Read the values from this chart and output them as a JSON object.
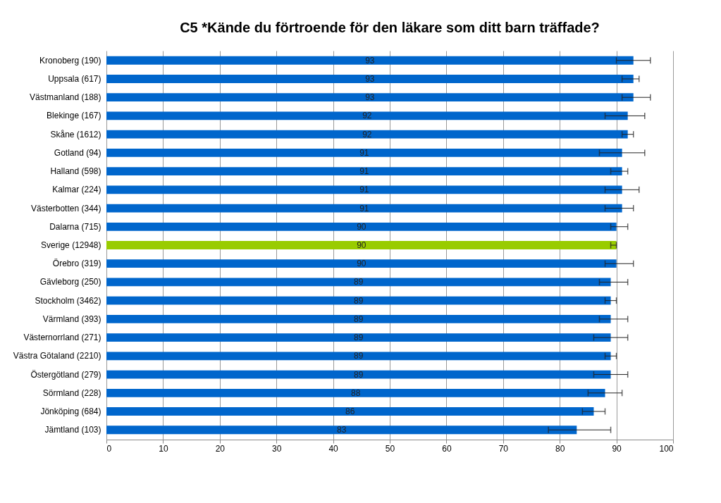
{
  "chart_data": {
    "type": "bar",
    "orientation": "horizontal",
    "title": "C5 *Kände du förtroende för den läkare som ditt barn träffade?",
    "categories": [
      "Kronoberg (190)",
      "Uppsala (617)",
      "Västmanland (188)",
      "Blekinge (167)",
      "Skåne (1612)",
      "Gotland (94)",
      "Halland (598)",
      "Kalmar (224)",
      "Västerbotten (344)",
      "Dalarna (715)",
      "Sverige (12948)",
      "Örebro (319)",
      "Gävleborg (250)",
      "Stockholm (3462)",
      "Värmland (393)",
      "Västernorrland (271)",
      "Västra Götaland (2210)",
      "Östergötland (279)",
      "Sörmland (228)",
      "Jönköping (684)",
      "Jämtland (103)"
    ],
    "values": [
      93,
      93,
      93,
      92,
      92,
      91,
      91,
      91,
      91,
      90,
      90,
      90,
      89,
      89,
      89,
      89,
      89,
      89,
      88,
      86,
      83
    ],
    "colors": [
      "#0066cc",
      "#0066cc",
      "#0066cc",
      "#0066cc",
      "#0066cc",
      "#0066cc",
      "#0066cc",
      "#0066cc",
      "#0066cc",
      "#0066cc",
      "#99cc00",
      "#0066cc",
      "#0066cc",
      "#0066cc",
      "#0066cc",
      "#0066cc",
      "#0066cc",
      "#0066cc",
      "#0066cc",
      "#0066cc",
      "#0066cc"
    ],
    "errors": [
      [
        90,
        96
      ],
      [
        91,
        94
      ],
      [
        91,
        96
      ],
      [
        88,
        95
      ],
      [
        91,
        93
      ],
      [
        87,
        95
      ],
      [
        89,
        92
      ],
      [
        88,
        94
      ],
      [
        88,
        93
      ],
      [
        89,
        92
      ],
      [
        89,
        90
      ],
      [
        88,
        93
      ],
      [
        87,
        92
      ],
      [
        88,
        90
      ],
      [
        87,
        92
      ],
      [
        86,
        92
      ],
      [
        88,
        90
      ],
      [
        86,
        92
      ],
      [
        85,
        91
      ],
      [
        84,
        88
      ],
      [
        78,
        89
      ]
    ],
    "data_labels": true,
    "xlim": [
      0,
      100
    ],
    "xticks": [
      0,
      10,
      20,
      30,
      40,
      50,
      60,
      70,
      80,
      90,
      100
    ],
    "grid": "x"
  }
}
